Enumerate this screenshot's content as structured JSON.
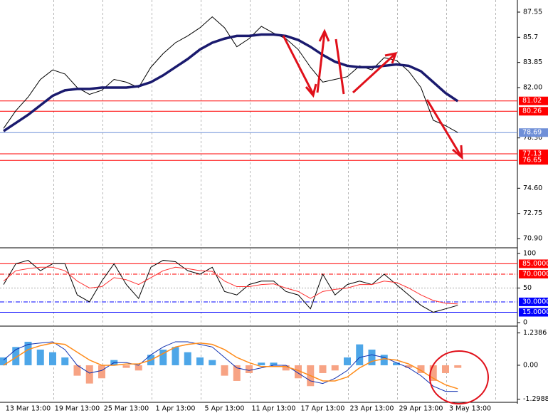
{
  "chart_data": [
    {
      "type": "line",
      "ylim": [
        70.22,
        88.44
      ],
      "yticks": [
        87.55,
        85.7,
        83.85,
        {
          "value": 82,
          "label": "82.00"
        },
        {
          "value": 78.3,
          "label": "78.30"
        },
        {
          "value": 74.6,
          "label": "74.60"
        },
        72.75,
        {
          "value": 70.9,
          "label": "70.90"
        }
      ],
      "series": [
        {
          "color": "#000000",
          "values": [
            79.0,
            80.3,
            81.3,
            82.6,
            83.3,
            83.0,
            82.0,
            81.5,
            81.8,
            82.6,
            82.4,
            82.0,
            83.5,
            84.5,
            85.3,
            85.8,
            86.4,
            87.2,
            86.4,
            85.0,
            85.6,
            86.5,
            86.0,
            85.6,
            84.8,
            83.5,
            82.4,
            82.6,
            82.8,
            83.6,
            83.3,
            84.2,
            84.0,
            83.2,
            82.0,
            79.6,
            79.2,
            78.7,
            null
          ]
        },
        {
          "color": "#1a1a6e",
          "values": [
            78.8,
            79.4,
            80.0,
            80.7,
            81.4,
            81.8,
            81.9,
            81.9,
            82.0,
            82.0,
            82.0,
            82.1,
            82.4,
            82.9,
            83.5,
            84.1,
            84.8,
            85.3,
            85.6,
            85.8,
            85.8,
            85.9,
            85.9,
            85.8,
            85.5,
            85.0,
            84.4,
            83.9,
            83.6,
            83.5,
            83.5,
            83.6,
            83.7,
            83.6,
            83.2,
            82.4,
            81.6,
            81.0,
            null
          ]
        }
      ],
      "levels": [
        {
          "value": 81.02,
          "color": "#ff0000"
        },
        {
          "value": 80.26,
          "color": "#ff0000"
        },
        {
          "value": 78.69,
          "color": "#6f8fd8"
        },
        {
          "value": 77.13,
          "color": "#ff0000"
        },
        {
          "value": 76.65,
          "color": "#ff0000"
        }
      ]
    },
    {
      "type": "line",
      "ylim": [
        -5,
        106
      ],
      "yticks": [
        100,
        50,
        0
      ],
      "series": [
        {
          "color": "#000000",
          "values": [
            55,
            85,
            90,
            75,
            85,
            85,
            40,
            30,
            60,
            85,
            55,
            35,
            80,
            90,
            88,
            75,
            70,
            80,
            45,
            40,
            55,
            60,
            60,
            45,
            40,
            20,
            70,
            40,
            55,
            60,
            55,
            70,
            55,
            40,
            25,
            15,
            20,
            25,
            null
          ]
        },
        {
          "color": "#ff3030",
          "values": [
            60,
            75,
            78,
            80,
            80,
            75,
            60,
            50,
            52,
            65,
            62,
            55,
            65,
            75,
            80,
            78,
            75,
            74,
            60,
            52,
            52,
            55,
            56,
            50,
            45,
            35,
            45,
            48,
            50,
            55,
            55,
            60,
            58,
            50,
            40,
            32,
            28,
            27,
            null
          ]
        }
      ],
      "levels": [
        {
          "value": 85,
          "label": "85.0000",
          "color": "#ff0000"
        },
        {
          "value": 70,
          "label": "70.0000",
          "color": "#ff0000"
        },
        {
          "value": 30,
          "label": "30.0000",
          "color": "#0000ff"
        },
        {
          "value": 15,
          "label": "15.0000",
          "color": "#0000ff"
        }
      ]
    },
    {
      "type": "combo",
      "ylim": [
        -1.42,
        1.39
      ],
      "yticks": [
        1.2386,
        {
          "value": 0,
          "label": "0.00"
        },
        -1.2988
      ],
      "categories": [
        null,
        null,
        "13 Mar 13:00",
        null,
        null,
        null,
        "19 Mar 13:00",
        null,
        null,
        null,
        "25 Mar 13:00",
        null,
        null,
        null,
        "1 Apr 13:00",
        null,
        null,
        null,
        "5 Apr 13:00",
        null,
        null,
        null,
        "11 Apr 13:00",
        null,
        null,
        null,
        "17 Apr 13:00",
        null,
        null,
        null,
        "23 Apr 13:00",
        null,
        null,
        null,
        "29 Apr 13:00",
        null,
        null,
        null,
        "3 May 13:00"
      ],
      "series": [
        {
          "type": "bar",
          "color": "#4da6e8",
          "negative_color": "#f7a384",
          "values": [
            0.3,
            0.7,
            0.9,
            0.6,
            0.5,
            0.3,
            -0.4,
            -0.7,
            -0.5,
            0.2,
            -0.1,
            -0.2,
            0.4,
            0.6,
            0.7,
            0.5,
            0.3,
            0.2,
            -0.4,
            -0.6,
            -0.3,
            0.1,
            0.1,
            -0.2,
            -0.5,
            -0.8,
            -0.3,
            -0.2,
            0.3,
            0.8,
            0.6,
            0.4,
            0.1,
            -0.1,
            -0.3,
            -0.6,
            -0.3,
            -0.1,
            null
          ]
        },
        {
          "type": "line",
          "color": "#1030b0",
          "values": [
            0.2,
            0.6,
            0.8,
            0.85,
            0.9,
            0.6,
            0.0,
            -0.3,
            -0.2,
            0.1,
            0.1,
            0.0,
            0.4,
            0.7,
            0.9,
            0.9,
            0.8,
            0.7,
            0.3,
            -0.1,
            -0.2,
            -0.1,
            0.0,
            0.0,
            -0.3,
            -0.6,
            -0.7,
            -0.5,
            -0.2,
            0.3,
            0.4,
            0.3,
            0.1,
            -0.1,
            -0.4,
            -0.8,
            -1.0,
            -1.0,
            null
          ]
        },
        {
          "type": "line",
          "color": "#ff8c1a",
          "values": [
            0.0,
            0.3,
            0.6,
            0.75,
            0.85,
            0.8,
            0.5,
            0.2,
            0.0,
            0.0,
            0.05,
            0.05,
            0.2,
            0.45,
            0.7,
            0.8,
            0.85,
            0.8,
            0.6,
            0.3,
            0.1,
            -0.05,
            -0.05,
            -0.05,
            -0.2,
            -0.4,
            -0.6,
            -0.6,
            -0.45,
            -0.1,
            0.15,
            0.25,
            0.2,
            0.05,
            -0.2,
            -0.5,
            -0.75,
            -0.9,
            null
          ]
        }
      ]
    }
  ]
}
